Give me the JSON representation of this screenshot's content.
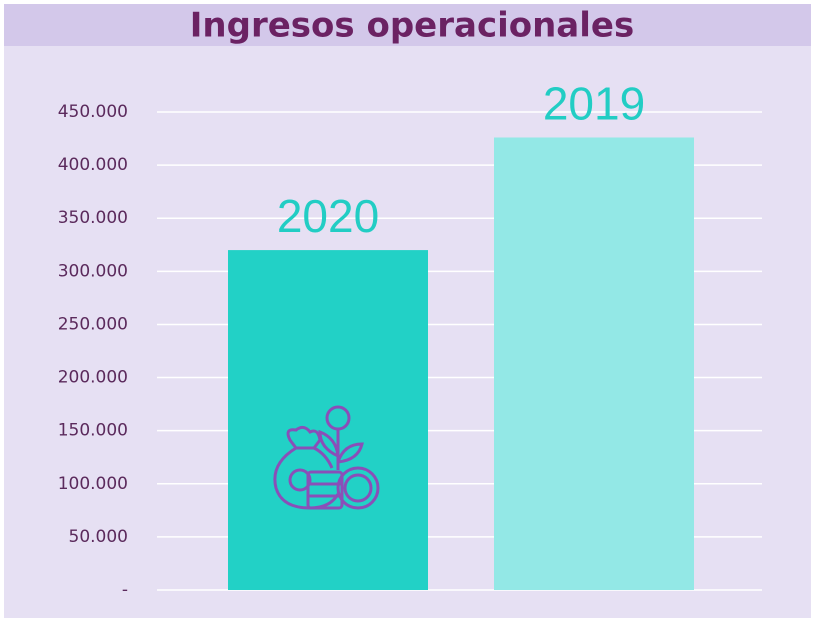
{
  "chart_data": {
    "type": "bar",
    "title": "Ingresos operacionales",
    "categories": [
      "2020",
      "2019"
    ],
    "values": [
      320000,
      426000
    ],
    "colors": [
      "#22d1c6",
      "#93e8e6"
    ],
    "ylim": [
      0,
      450000
    ],
    "yticks": [
      {
        "value": 0,
        "label": "-"
      },
      {
        "value": 50000,
        "label": "50.000"
      },
      {
        "value": 100000,
        "label": "100.000"
      },
      {
        "value": 150000,
        "label": "150.000"
      },
      {
        "value": 200000,
        "label": "200.000"
      },
      {
        "value": 250000,
        "label": "250.000"
      },
      {
        "value": 300000,
        "label": "300.000"
      },
      {
        "value": 350000,
        "label": "350.000"
      },
      {
        "value": 400000,
        "label": "400.000"
      },
      {
        "value": 450000,
        "label": "450.000"
      }
    ],
    "grid": true
  }
}
